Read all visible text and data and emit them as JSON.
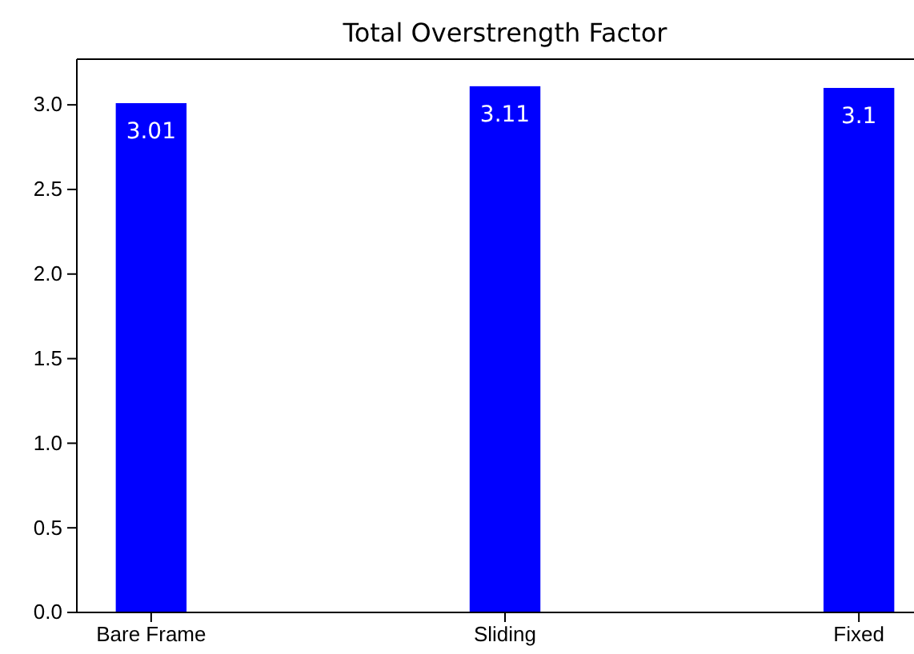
{
  "chart_data": {
    "type": "bar",
    "title": "Total Overstrength Factor",
    "categories": [
      "Bare Frame",
      "Sliding",
      "Fixed"
    ],
    "values": [
      3.01,
      3.11,
      3.1
    ],
    "color": "#0000ff",
    "value_labels": [
      "3.01",
      "3.11",
      "3.1"
    ],
    "ylim": [
      0,
      3.27
    ],
    "yticks": [
      {
        "value": 0,
        "label": "0.0"
      },
      {
        "value": 0.5,
        "label": "0.5"
      },
      {
        "value": 1,
        "label": "1.0"
      },
      {
        "value": 1.5,
        "label": "1.5"
      },
      {
        "value": 2,
        "label": "2.0"
      },
      {
        "value": 2.5,
        "label": "2.5"
      },
      {
        "value": 3,
        "label": "3.0"
      }
    ],
    "grid": false
  }
}
